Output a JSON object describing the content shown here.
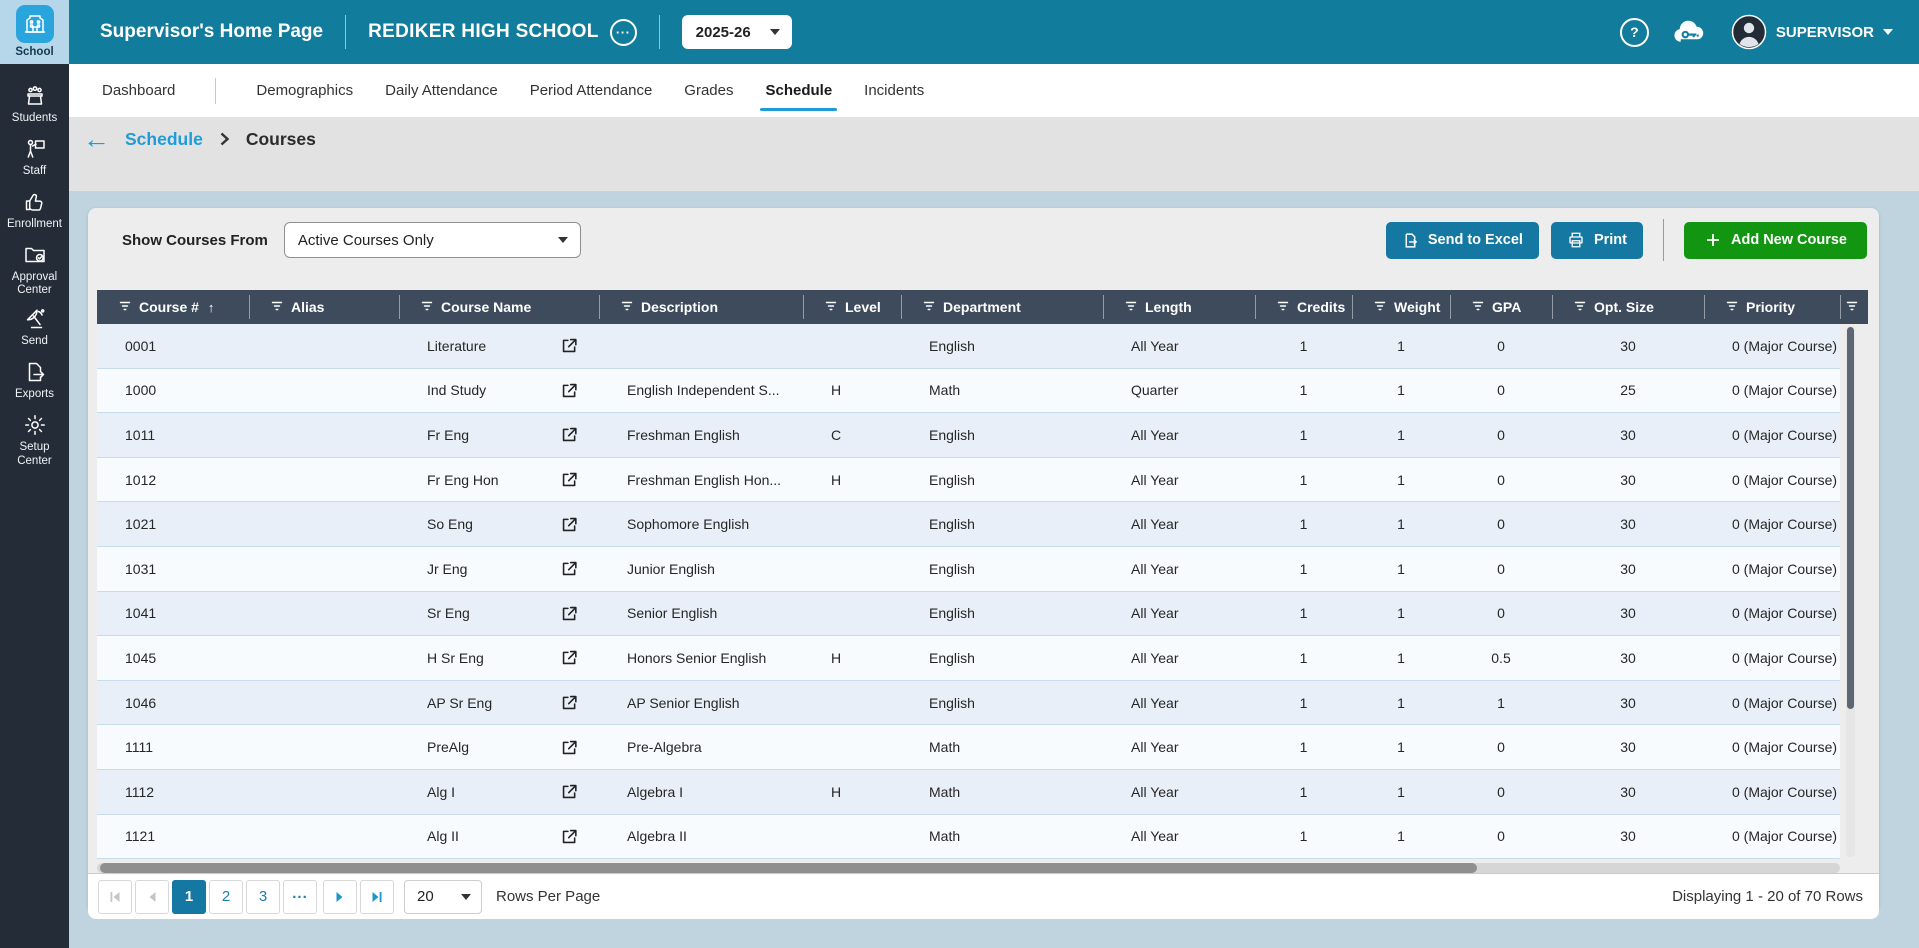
{
  "colors": {
    "header_teal": "#127c9c",
    "sidebar_dark": "#242c37",
    "accent_blue": "#1e9cd7",
    "active_item_bg": "#b5d7e9",
    "active_icon_bg": "#2aa4dd",
    "button_teal": "#1478a2",
    "button_green": "#129611",
    "grid_header_bg": "#3e4b5d",
    "row_alt_bg": "#e9eff8",
    "row_bg": "#f8fbfe",
    "content_bg": "#bfd4df",
    "panel_bg": "#ededee"
  },
  "topbar": {
    "page_title": "Supervisor's Home Page",
    "school_name": "REDIKER HIGH SCHOOL",
    "school_year": "2025-26",
    "user_name": "SUPERVISOR",
    "icons": [
      "school-options-ellipsis-icon",
      "help-icon",
      "cloud-key-icon",
      "avatar"
    ]
  },
  "sidebar": {
    "items": [
      {
        "label": "School",
        "icon": "school-icon",
        "active": true
      },
      {
        "label": "Students",
        "icon": "students-icon"
      },
      {
        "label": "Staff",
        "icon": "staff-icon"
      },
      {
        "label": "Enrollment",
        "icon": "enrollment-icon"
      },
      {
        "label": "Approval Center",
        "icon": "approval-center-icon"
      },
      {
        "label": "Send",
        "icon": "send-icon"
      },
      {
        "label": "Exports",
        "icon": "exports-icon"
      },
      {
        "label": "Setup Center",
        "icon": "setup-center-icon"
      }
    ]
  },
  "nav": {
    "tabs": [
      {
        "label": "Dashboard"
      },
      {
        "label": "Demographics"
      },
      {
        "label": "Daily Attendance"
      },
      {
        "label": "Period Attendance"
      },
      {
        "label": "Grades"
      },
      {
        "label": "Schedule",
        "active": true
      },
      {
        "label": "Incidents"
      }
    ]
  },
  "breadcrumb": {
    "parent": "Schedule",
    "current": "Courses"
  },
  "toolbar": {
    "filter_label": "Show Courses From",
    "filter_value": "Active Courses Only",
    "send_to_excel_label": "Send to Excel",
    "print_label": "Print",
    "add_course_label": "Add New Course"
  },
  "table": {
    "columns": [
      {
        "label": "Course #",
        "sorted": "asc"
      },
      {
        "label": "Alias"
      },
      {
        "label": "Course Name"
      },
      {
        "label": "Description"
      },
      {
        "label": "Level"
      },
      {
        "label": "Department"
      },
      {
        "label": "Length"
      },
      {
        "label": "Credits"
      },
      {
        "label": "Weight"
      },
      {
        "label": "GPA"
      },
      {
        "label": "Opt. Size"
      },
      {
        "label": "Priority"
      }
    ],
    "rows": [
      {
        "course_num": "0001",
        "alias": "",
        "course_name": "Literature",
        "description": "",
        "level": "",
        "department": "English",
        "length": "All Year",
        "credits": "1",
        "weight": "1",
        "gpa": "0",
        "opt_size": "30",
        "priority": "0 (Major Course)"
      },
      {
        "course_num": "1000",
        "alias": "",
        "course_name": "Ind Study",
        "description": "English Independent S...",
        "level": "H",
        "department": "Math",
        "length": "Quarter",
        "credits": "1",
        "weight": "1",
        "gpa": "0",
        "opt_size": "25",
        "priority": "0 (Major Course)"
      },
      {
        "course_num": "1011",
        "alias": "",
        "course_name": "Fr Eng",
        "description": "Freshman English",
        "level": "C",
        "department": "English",
        "length": "All Year",
        "credits": "1",
        "weight": "1",
        "gpa": "0",
        "opt_size": "30",
        "priority": "0 (Major Course)"
      },
      {
        "course_num": "1012",
        "alias": "",
        "course_name": "Fr Eng Hon",
        "description": "Freshman English Hon...",
        "level": "H",
        "department": "English",
        "length": "All Year",
        "credits": "1",
        "weight": "1",
        "gpa": "0",
        "opt_size": "30",
        "priority": "0 (Major Course)"
      },
      {
        "course_num": "1021",
        "alias": "",
        "course_name": "So Eng",
        "description": "Sophomore English",
        "level": "",
        "department": "English",
        "length": "All Year",
        "credits": "1",
        "weight": "1",
        "gpa": "0",
        "opt_size": "30",
        "priority": "0 (Major Course)"
      },
      {
        "course_num": "1031",
        "alias": "",
        "course_name": "Jr Eng",
        "description": "Junior English",
        "level": "",
        "department": "English",
        "length": "All Year",
        "credits": "1",
        "weight": "1",
        "gpa": "0",
        "opt_size": "30",
        "priority": "0 (Major Course)"
      },
      {
        "course_num": "1041",
        "alias": "",
        "course_name": "Sr Eng",
        "description": "Senior English",
        "level": "",
        "department": "English",
        "length": "All Year",
        "credits": "1",
        "weight": "1",
        "gpa": "0",
        "opt_size": "30",
        "priority": "0 (Major Course)"
      },
      {
        "course_num": "1045",
        "alias": "",
        "course_name": "H Sr Eng",
        "description": "Honors Senior English",
        "level": "H",
        "department": "English",
        "length": "All Year",
        "credits": "1",
        "weight": "1",
        "gpa": "0.5",
        "opt_size": "30",
        "priority": "0 (Major Course)"
      },
      {
        "course_num": "1046",
        "alias": "",
        "course_name": "AP Sr Eng",
        "description": "AP Senior English",
        "level": "",
        "department": "English",
        "length": "All Year",
        "credits": "1",
        "weight": "1",
        "gpa": "1",
        "opt_size": "30",
        "priority": "0 (Major Course)"
      },
      {
        "course_num": "1111",
        "alias": "",
        "course_name": "PreAlg",
        "description": "Pre-Algebra",
        "level": "",
        "department": "Math",
        "length": "All Year",
        "credits": "1",
        "weight": "1",
        "gpa": "0",
        "opt_size": "30",
        "priority": "0 (Major Course)"
      },
      {
        "course_num": "1112",
        "alias": "",
        "course_name": "Alg I",
        "description": "Algebra I",
        "level": "H",
        "department": "Math",
        "length": "All Year",
        "credits": "1",
        "weight": "1",
        "gpa": "0",
        "opt_size": "30",
        "priority": "0 (Major Course)"
      },
      {
        "course_num": "1121",
        "alias": "",
        "course_name": "Alg II",
        "description": "Algebra II",
        "level": "",
        "department": "Math",
        "length": "All Year",
        "credits": "1",
        "weight": "1",
        "gpa": "0",
        "opt_size": "30",
        "priority": "0 (Major Course)"
      }
    ]
  },
  "pagination": {
    "pages": [
      "1",
      "2",
      "3"
    ],
    "active_page": "1",
    "ellipsis": "...",
    "rows_per_page": "20",
    "rows_per_page_label": "Rows Per Page",
    "summary": "Displaying 1 - 20 of 70 Rows"
  }
}
